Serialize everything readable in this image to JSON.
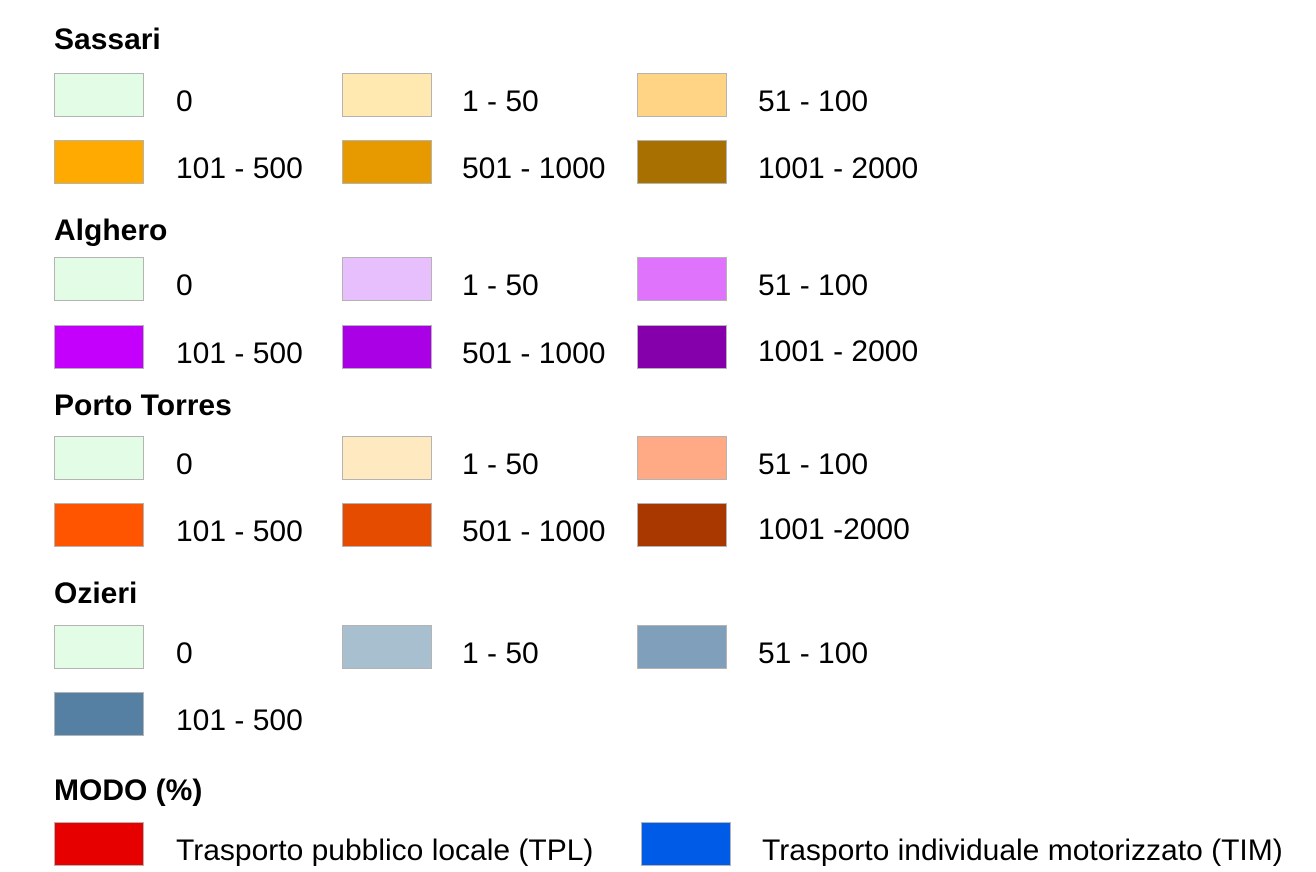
{
  "legend": {
    "sections": [
      {
        "title": "Sassari",
        "items": [
          {
            "label": "0",
            "color": "#e2fce6"
          },
          {
            "label": "1 - 50",
            "color": "#ffe9b0"
          },
          {
            "label": "51 - 100",
            "color": "#ffd484"
          },
          {
            "label": "101 - 500",
            "color": "#ffaa00"
          },
          {
            "label": "501 - 1000",
            "color": "#e69a00"
          },
          {
            "label": "1001 - 2000",
            "color": "#a77000"
          }
        ]
      },
      {
        "title": "Alghero",
        "items": [
          {
            "label": "0",
            "color": "#e2fce6"
          },
          {
            "label": "1 - 50",
            "color": "#e7bffd"
          },
          {
            "label": "51 - 100",
            "color": "#df73fc"
          },
          {
            "label": "101 - 500",
            "color": "#c400fc"
          },
          {
            "label": "501 - 1000",
            "color": "#aa00e6"
          },
          {
            "label": "1001 - 2000",
            "color": "#8500aa"
          }
        ]
      },
      {
        "title": "Porto Torres",
        "items": [
          {
            "label": "0",
            "color": "#e2fce6"
          },
          {
            "label": "1 - 50",
            "color": "#ffe9c0"
          },
          {
            "label": "51 - 100",
            "color": "#ffaa84"
          },
          {
            "label": "101 - 500",
            "color": "#ff5500"
          },
          {
            "label": "501 - 1000",
            "color": "#e64c00"
          },
          {
            "label": "1001 -2000",
            "color": "#a83800"
          }
        ]
      },
      {
        "title": "Ozieri",
        "items": [
          {
            "label": "0",
            "color": "#e2fce6"
          },
          {
            "label": "1 - 50",
            "color": "#a8bfcf"
          },
          {
            "label": "51 - 100",
            "color": "#7f9fba"
          },
          {
            "label": "101 - 500",
            "color": "#5580a3"
          }
        ]
      }
    ],
    "mode": {
      "title": "MODO (%)",
      "items": [
        {
          "label": "Trasporto pubblico locale (TPL)",
          "color": "#e60000"
        },
        {
          "label": "Trasporto individuale motorizzato (TIM)",
          "color": "#005ce6"
        }
      ]
    }
  }
}
